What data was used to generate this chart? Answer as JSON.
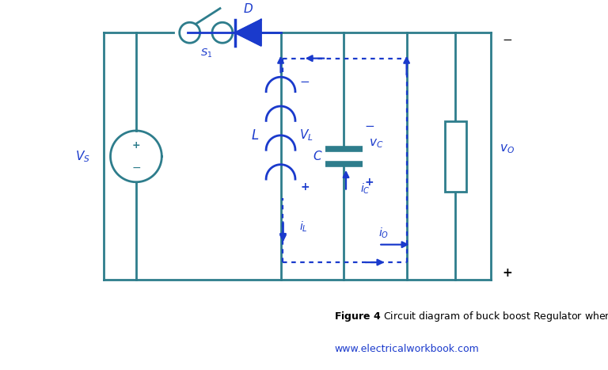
{
  "bg_color": "#ffffff",
  "wire_color": "#2e7d8c",
  "blue_color": "#1a3acc",
  "fig_width": 7.68,
  "fig_height": 4.67,
  "lw_main": 2.0,
  "lw_dot": 1.6
}
